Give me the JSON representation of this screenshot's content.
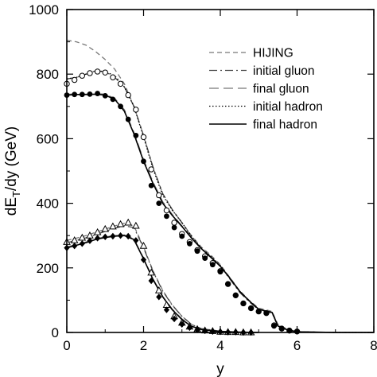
{
  "chart_data": {
    "type": "line",
    "title": "",
    "xlabel": "y",
    "ylabel_main": "dE",
    "ylabel_sub": "T",
    "ylabel_rest": "/dy (GeV)",
    "xlim": [
      0,
      8
    ],
    "ylim": [
      0,
      1000
    ],
    "x_ticks": [
      0,
      2,
      4,
      6,
      8
    ],
    "y_ticks": [
      0,
      200,
      400,
      600,
      800,
      1000
    ],
    "grid": false,
    "legend_position": "top-right",
    "legend": [
      {
        "label": "HIJING",
        "style": "short-dash",
        "color": "#777777"
      },
      {
        "label": "initial gluon",
        "style": "dash-dot",
        "color": "#444444"
      },
      {
        "label": "final gluon",
        "style": "long-dash",
        "color": "#777777"
      },
      {
        "label": "initial hadron",
        "style": "dotted",
        "color": "#000000"
      },
      {
        "label": "final hadron",
        "style": "solid",
        "color": "#000000"
      }
    ],
    "series": [
      {
        "name": "HIJING",
        "style": "short-dash",
        "color": "#777777",
        "x": [
          0,
          0.25,
          0.5,
          0.75,
          1.0,
          1.25,
          1.5,
          1.75,
          2.0,
          2.25,
          2.5,
          2.75,
          3.0,
          3.25,
          3.5,
          3.75,
          4.0,
          4.25,
          4.5,
          4.75,
          5.0,
          5.2,
          5.35,
          5.5,
          5.75,
          6.0,
          6.5,
          7.0,
          8.0
        ],
        "y": [
          905,
          900,
          890,
          870,
          845,
          815,
          770,
          700,
          610,
          510,
          430,
          380,
          340,
          300,
          265,
          240,
          210,
          170,
          130,
          100,
          75,
          70,
          65,
          25,
          10,
          3,
          1,
          0,
          0
        ]
      },
      {
        "name": "initial gluon",
        "style": "dash-dot",
        "color": "#444444",
        "x": [
          0,
          0.25,
          0.5,
          0.75,
          1.0,
          1.25,
          1.5,
          1.75,
          2.0,
          2.25,
          2.5,
          2.75,
          3.0,
          3.25,
          3.5,
          3.75,
          4.0,
          4.25,
          4.5,
          4.75,
          5.0,
          5.2,
          5.35,
          5.5,
          5.75,
          6.0,
          6.5,
          7.0,
          8.0
        ],
        "y": [
          785,
          790,
          800,
          810,
          808,
          790,
          760,
          700,
          610,
          510,
          430,
          380,
          340,
          295,
          260,
          235,
          205,
          165,
          125,
          95,
          70,
          65,
          60,
          20,
          8,
          2,
          1,
          0,
          0
        ]
      },
      {
        "name": "final gluon",
        "style": "long-dash",
        "color": "#777777",
        "x": [
          0,
          0.25,
          0.5,
          0.75,
          1.0,
          1.25,
          1.5,
          1.75,
          2.0,
          2.25,
          2.5,
          2.75,
          3.0,
          3.25,
          3.5,
          3.75,
          4.0,
          4.25,
          4.5,
          4.75,
          5.0,
          5.2,
          5.35,
          5.5,
          5.75,
          6.0,
          6.5,
          7.0,
          8.0
        ],
        "y": [
          738,
          738,
          738,
          740,
          738,
          725,
          690,
          620,
          535,
          465,
          405,
          365,
          330,
          295,
          262,
          235,
          205,
          168,
          128,
          98,
          72,
          66,
          62,
          20,
          8,
          2,
          1,
          0,
          0
        ]
      },
      {
        "name": "initial hadron",
        "style": "dotted",
        "color": "#000000",
        "x": [
          0,
          0.25,
          0.5,
          0.75,
          1.0,
          1.25,
          1.5,
          1.75,
          2.0,
          2.25,
          2.5,
          2.75,
          3.0,
          3.25,
          3.5,
          3.75,
          4.0,
          4.25,
          4.5,
          4.75,
          5.0,
          5.2,
          5.35,
          5.5,
          5.75,
          6.0,
          6.5,
          7.0,
          8.0
        ],
        "y": [
          785,
          790,
          800,
          810,
          808,
          795,
          760,
          700,
          605,
          505,
          425,
          378,
          340,
          298,
          262,
          236,
          208,
          168,
          128,
          98,
          72,
          66,
          62,
          22,
          8,
          2,
          1,
          0,
          0
        ]
      },
      {
        "name": "final hadron",
        "style": "solid",
        "color": "#000000",
        "x": [
          0,
          0.25,
          0.5,
          0.75,
          1.0,
          1.25,
          1.5,
          1.75,
          2.0,
          2.25,
          2.5,
          2.75,
          3.0,
          3.25,
          3.5,
          3.75,
          4.0,
          4.25,
          4.5,
          4.75,
          5.0,
          5.2,
          5.35,
          5.5,
          5.75,
          6.0,
          6.5,
          7.0,
          8.0
        ],
        "y": [
          735,
          737,
          737,
          738,
          735,
          722,
          685,
          615,
          530,
          460,
          400,
          362,
          328,
          292,
          260,
          233,
          205,
          168,
          128,
          98,
          72,
          66,
          62,
          20,
          8,
          2,
          1,
          0,
          0
        ]
      },
      {
        "name": "",
        "style": "short-dash",
        "color": "#777777",
        "x": [
          0,
          0.25,
          0.5,
          0.75,
          1.0,
          1.25,
          1.5,
          1.75,
          2.0,
          2.25,
          2.5,
          2.75,
          3.0,
          3.25,
          3.5,
          4.0,
          4.5,
          5.0
        ],
        "y": [
          285,
          292,
          300,
          310,
          320,
          330,
          338,
          330,
          265,
          190,
          130,
          85,
          50,
          25,
          12,
          4,
          1,
          0
        ]
      },
      {
        "name": "",
        "style": "dash-dot",
        "color": "#444444",
        "x": [
          0,
          0.25,
          0.5,
          0.75,
          1.0,
          1.25,
          1.5,
          1.75,
          2.0,
          2.25,
          2.5,
          2.75,
          3.0,
          3.25,
          3.5,
          4.0,
          4.5,
          5.0
        ],
        "y": [
          278,
          285,
          293,
          303,
          313,
          323,
          330,
          325,
          262,
          188,
          128,
          84,
          50,
          25,
          12,
          4,
          1,
          0
        ]
      },
      {
        "name": "",
        "style": "long-dash",
        "color": "#777777",
        "x": [
          0,
          0.25,
          0.5,
          0.75,
          1.0,
          1.25,
          1.5,
          1.75,
          2.0,
          2.25,
          2.5,
          2.75,
          3.0,
          3.25,
          3.5,
          4.0,
          4.5,
          5.0
        ],
        "y": [
          265,
          272,
          280,
          290,
          296,
          300,
          302,
          290,
          230,
          165,
          112,
          72,
          42,
          20,
          10,
          3,
          1,
          0
        ]
      },
      {
        "name": "",
        "style": "solid",
        "color": "#000000",
        "x": [
          0,
          0.25,
          0.5,
          0.75,
          1.0,
          1.25,
          1.5,
          1.75,
          2.0,
          2.25,
          2.5,
          2.75,
          3.0,
          3.25,
          3.5,
          4.0,
          4.5,
          5.0
        ],
        "y": [
          262,
          270,
          278,
          288,
          294,
          298,
          300,
          288,
          228,
          163,
          110,
          70,
          40,
          19,
          9,
          3,
          1,
          0
        ]
      }
    ],
    "markers": [
      {
        "name": "",
        "shape": "open-circle",
        "x": [
          0.0,
          0.2,
          0.4,
          0.6,
          0.8,
          1.0,
          1.2,
          1.4,
          1.6,
          1.8,
          2.0,
          2.2,
          2.4,
          2.6,
          2.8,
          3.0,
          3.2,
          3.4,
          3.6,
          3.8,
          4.0,
          4.2,
          4.4,
          4.6,
          4.8,
          5.0,
          5.2,
          5.4,
          5.6,
          5.8,
          6.0
        ],
        "y": [
          770,
          782,
          795,
          803,
          808,
          805,
          790,
          770,
          735,
          690,
          605,
          505,
          425,
          378,
          340,
          305,
          280,
          255,
          236,
          215,
          190,
          150,
          115,
          90,
          75,
          65,
          60,
          22,
          12,
          6,
          3
        ]
      },
      {
        "name": "",
        "shape": "filled-circle",
        "x": [
          0.0,
          0.2,
          0.4,
          0.6,
          0.8,
          1.0,
          1.2,
          1.4,
          1.6,
          1.8,
          2.0,
          2.2,
          2.4,
          2.6,
          2.8,
          3.0,
          3.2,
          3.4,
          3.6,
          3.8,
          4.0,
          4.2,
          4.4,
          4.6,
          4.8,
          5.0,
          5.2,
          5.4,
          5.6,
          5.8,
          6.0
        ],
        "y": [
          735,
          737,
          737,
          738,
          740,
          733,
          722,
          700,
          660,
          610,
          530,
          455,
          400,
          360,
          325,
          298,
          275,
          252,
          230,
          210,
          188,
          150,
          115,
          90,
          75,
          65,
          60,
          20,
          12,
          5,
          3
        ]
      },
      {
        "name": "",
        "shape": "open-triangle",
        "x": [
          0.0,
          0.2,
          0.4,
          0.6,
          0.8,
          1.0,
          1.2,
          1.4,
          1.6,
          1.8,
          2.0,
          2.2,
          2.4,
          2.6,
          2.8,
          3.0,
          3.2,
          3.4,
          3.6,
          3.8,
          4.0,
          4.2,
          4.4,
          4.6,
          4.8
        ],
        "y": [
          280,
          285,
          293,
          300,
          310,
          320,
          328,
          335,
          340,
          330,
          268,
          185,
          130,
          85,
          50,
          30,
          18,
          10,
          6,
          4,
          2,
          1,
          1,
          0,
          0
        ]
      },
      {
        "name": "",
        "shape": "filled-diamond",
        "x": [
          0.0,
          0.2,
          0.4,
          0.6,
          0.8,
          1.0,
          1.2,
          1.4,
          1.6,
          1.8,
          2.0,
          2.2,
          2.4,
          2.6,
          2.8,
          3.0,
          3.2,
          3.4,
          3.6,
          3.8,
          4.0,
          4.2,
          4.4,
          4.6,
          4.8
        ],
        "y": [
          262,
          268,
          275,
          284,
          292,
          296,
          298,
          300,
          298,
          285,
          225,
          160,
          110,
          70,
          42,
          25,
          15,
          8,
          5,
          3,
          2,
          1,
          1,
          0,
          0
        ]
      }
    ]
  }
}
